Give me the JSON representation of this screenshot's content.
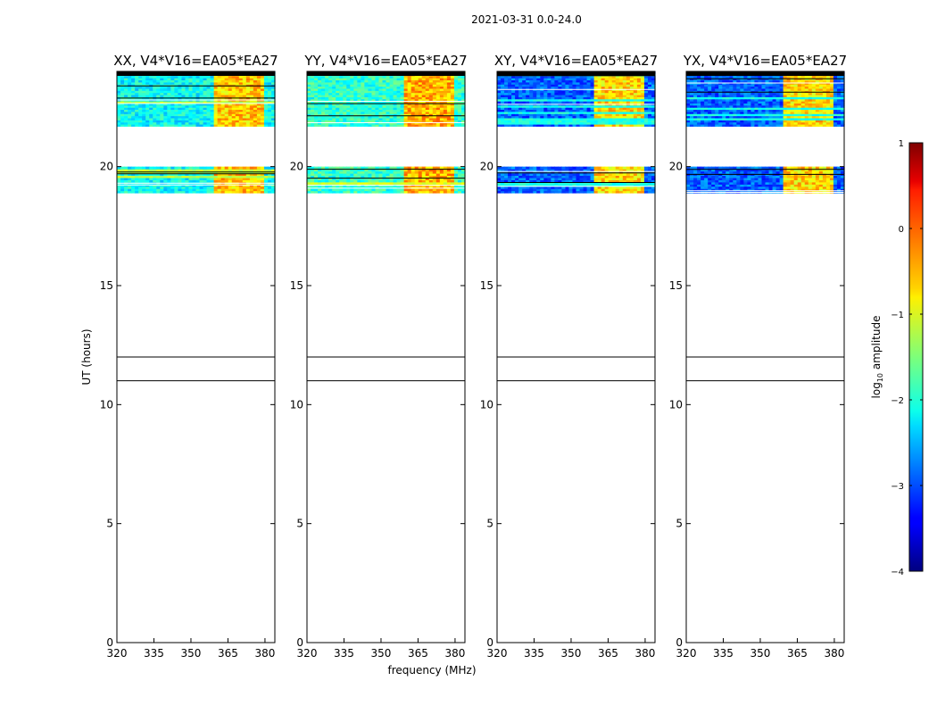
{
  "suptitle": "2021-03-31 0.0-24.0",
  "chart_data": {
    "type": "heatmap",
    "xlabel": "frequency (MHz)",
    "ylabel": "UT (hours)",
    "xlim": [
      320,
      384
    ],
    "ylim": [
      0,
      24
    ],
    "xticks": [
      320,
      335,
      350,
      365,
      380
    ],
    "yticks": [
      0,
      5,
      10,
      15,
      20
    ],
    "horizontal_lines_ut": [
      11.0,
      12.0
    ],
    "rfi_band_mhz": [
      360,
      380
    ],
    "data_blocks_ut": [
      [
        18.9,
        20.0
      ],
      [
        21.7,
        24.0
      ]
    ],
    "panels": [
      {
        "title": "XX, V4*V16=EA05*EA27",
        "base_level": -2.1,
        "rfi_level": -0.6
      },
      {
        "title": "YY, V4*V16=EA05*EA27",
        "base_level": -1.9,
        "rfi_level": -0.5
      },
      {
        "title": "XY, V4*V16=EA05*EA27",
        "base_level": -2.9,
        "rfi_level": -0.7
      },
      {
        "title": "YX, V4*V16=EA05*EA27",
        "base_level": -2.9,
        "rfi_level": -0.7
      }
    ],
    "colorbar": {
      "label": "log",
      "label_sub": "10",
      "label_rest": " amplitude",
      "min": -4,
      "max": 1,
      "ticks": [
        -4,
        -3,
        -2,
        -1,
        0,
        1
      ]
    }
  }
}
